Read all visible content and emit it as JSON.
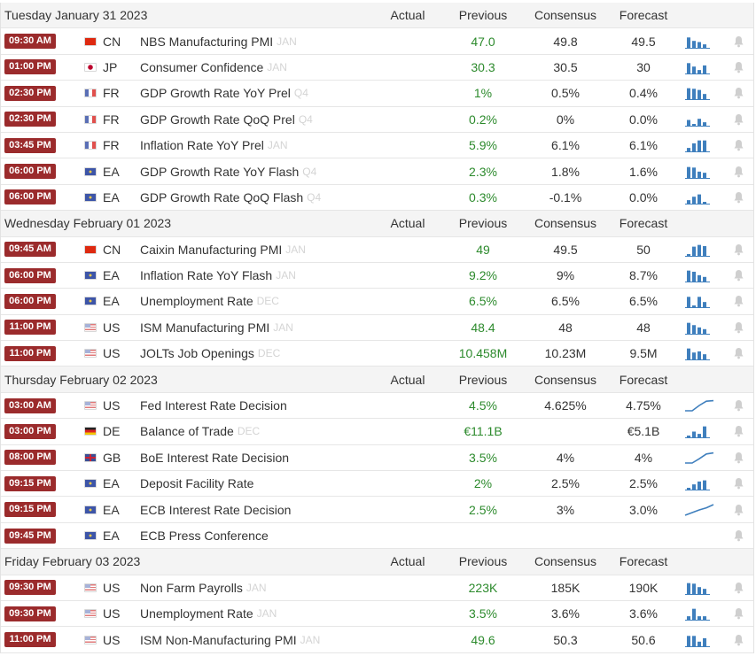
{
  "colors": {
    "time_badge": "#9b2b2c",
    "previous_value": "#2c8a2c",
    "sparkline": "#3f7fbd",
    "bell": "#cfcfcf"
  },
  "icons": {
    "bell": "bell-icon",
    "sparkline": "sparkline-chart-icon"
  },
  "columns": {
    "actual": "Actual",
    "previous": "Previous",
    "consensus": "Consensus",
    "forecast": "Forecast"
  },
  "days": [
    {
      "date": "Tuesday January 31 2023",
      "events": [
        {
          "time": "09:30 AM",
          "flag": "cn",
          "country": "CN",
          "event": "NBS Manufacturing PMI",
          "ref": "JAN",
          "actual": "",
          "previous": "47.0",
          "consensus": "49.8",
          "forecast": "49.5",
          "spark_type": "bar",
          "spark": [
            0.9,
            0.6,
            0.5,
            0.3
          ]
        },
        {
          "time": "01:00 PM",
          "flag": "jp",
          "country": "JP",
          "event": "Consumer Confidence",
          "ref": "JAN",
          "actual": "",
          "previous": "30.3",
          "consensus": "30.5",
          "forecast": "30",
          "spark_type": "bar",
          "spark": [
            0.9,
            0.6,
            0.3,
            0.7
          ]
        },
        {
          "time": "02:30 PM",
          "flag": "fr",
          "country": "FR",
          "event": "GDP Growth Rate YoY Prel",
          "ref": "Q4",
          "actual": "",
          "previous": "1%",
          "consensus": "0.5%",
          "forecast": "0.4%",
          "spark_type": "bar",
          "spark": [
            0.95,
            0.9,
            0.8,
            0.45
          ]
        },
        {
          "time": "02:30 PM",
          "flag": "fr",
          "country": "FR",
          "event": "GDP Growth Rate QoQ Prel",
          "ref": "Q4",
          "actual": "",
          "previous": "0.2%",
          "consensus": "0%",
          "forecast": "0.0%",
          "spark_type": "bar",
          "spark": [
            0.5,
            0.1,
            0.6,
            0.3
          ]
        },
        {
          "time": "03:45 PM",
          "flag": "fr",
          "country": "FR",
          "event": "Inflation Rate YoY Prel",
          "ref": "JAN",
          "actual": "",
          "previous": "5.9%",
          "consensus": "6.1%",
          "forecast": "6.1%",
          "spark_type": "bar",
          "spark": [
            0.3,
            0.7,
            0.95,
            0.95
          ]
        },
        {
          "time": "06:00 PM",
          "flag": "ea",
          "country": "EA",
          "event": "GDP Growth Rate YoY Flash",
          "ref": "Q4",
          "actual": "",
          "previous": "2.3%",
          "consensus": "1.8%",
          "forecast": "1.6%",
          "spark_type": "bar",
          "spark": [
            0.95,
            0.9,
            0.55,
            0.45
          ]
        },
        {
          "time": "06:00 PM",
          "flag": "ea",
          "country": "EA",
          "event": "GDP Growth Rate QoQ Flash",
          "ref": "Q4",
          "actual": "",
          "previous": "0.3%",
          "consensus": "-0.1%",
          "forecast": "0.0%",
          "spark_type": "bar",
          "spark": [
            0.3,
            0.6,
            0.8,
            0.1
          ]
        }
      ]
    },
    {
      "date": "Wednesday February 01 2023",
      "events": [
        {
          "time": "09:45 AM",
          "flag": "cn",
          "country": "CN",
          "event": "Caixin Manufacturing PMI",
          "ref": "JAN",
          "actual": "",
          "previous": "49",
          "consensus": "49.5",
          "forecast": "50",
          "spark_type": "bar",
          "spark": [
            0.1,
            0.8,
            0.95,
            0.85
          ]
        },
        {
          "time": "06:00 PM",
          "flag": "ea",
          "country": "EA",
          "event": "Inflation Rate YoY Flash",
          "ref": "JAN",
          "actual": "",
          "previous": "9.2%",
          "consensus": "9%",
          "forecast": "8.7%",
          "spark_type": "bar",
          "spark": [
            0.95,
            0.85,
            0.55,
            0.4
          ]
        },
        {
          "time": "06:00 PM",
          "flag": "ea",
          "country": "EA",
          "event": "Unemployment Rate",
          "ref": "DEC",
          "actual": "",
          "previous": "6.5%",
          "consensus": "6.5%",
          "forecast": "6.5%",
          "spark_type": "bar",
          "spark": [
            0.9,
            0.1,
            0.9,
            0.45
          ]
        },
        {
          "time": "11:00 PM",
          "flag": "us",
          "country": "US",
          "event": "ISM Manufacturing PMI",
          "ref": "JAN",
          "actual": "",
          "previous": "48.4",
          "consensus": "48",
          "forecast": "48",
          "spark_type": "bar",
          "spark": [
            0.95,
            0.75,
            0.55,
            0.4
          ]
        },
        {
          "time": "11:00 PM",
          "flag": "us",
          "country": "US",
          "event": "JOLTs Job Openings",
          "ref": "DEC",
          "actual": "",
          "previous": "10.458M",
          "consensus": "10.23M",
          "forecast": "9.5M",
          "spark_type": "bar",
          "spark": [
            0.95,
            0.6,
            0.7,
            0.45
          ]
        }
      ]
    },
    {
      "date": "Thursday February 02 2023",
      "events": [
        {
          "time": "03:00 AM",
          "flag": "us",
          "country": "US",
          "event": "Fed Interest Rate Decision",
          "ref": "",
          "actual": "",
          "previous": "4.5%",
          "consensus": "4.625%",
          "forecast": "4.75%",
          "spark_type": "line",
          "spark": [
            0.0,
            0.0,
            0.5,
            0.9,
            0.95
          ]
        },
        {
          "time": "03:00 PM",
          "flag": "de",
          "country": "DE",
          "event": "Balance of Trade",
          "ref": "DEC",
          "actual": "",
          "previous": "€11.1B",
          "consensus": "",
          "forecast": "€5.1B",
          "spark_type": "bar",
          "spark": [
            0.1,
            0.5,
            0.3,
            0.95
          ]
        },
        {
          "time": "08:00 PM",
          "flag": "gb",
          "country": "GB",
          "event": "BoE Interest Rate Decision",
          "ref": "",
          "actual": "",
          "previous": "3.5%",
          "consensus": "4%",
          "forecast": "4%",
          "spark_type": "line",
          "spark": [
            0.0,
            0.0,
            0.4,
            0.85,
            0.95
          ]
        },
        {
          "time": "09:15 PM",
          "flag": "ea",
          "country": "EA",
          "event": "Deposit Facility Rate",
          "ref": "",
          "actual": "",
          "previous": "2%",
          "consensus": "2.5%",
          "forecast": "2.5%",
          "spark_type": "bar",
          "spark": [
            0.1,
            0.45,
            0.7,
            0.8
          ]
        },
        {
          "time": "09:15 PM",
          "flag": "ea",
          "country": "EA",
          "event": "ECB Interest Rate Decision",
          "ref": "",
          "actual": "",
          "previous": "2.5%",
          "consensus": "3%",
          "forecast": "3.0%",
          "spark_type": "line",
          "spark": [
            0.0,
            0.25,
            0.5,
            0.7,
            1.0
          ]
        },
        {
          "time": "09:45 PM",
          "flag": "ea",
          "country": "EA",
          "event": "ECB Press Conference",
          "ref": "",
          "actual": "",
          "previous": "",
          "consensus": "",
          "forecast": "",
          "spark_type": "none",
          "spark": []
        }
      ]
    },
    {
      "date": "Friday February 03 2023",
      "events": [
        {
          "time": "09:30 PM",
          "flag": "us",
          "country": "US",
          "event": "Non Farm Payrolls",
          "ref": "JAN",
          "actual": "",
          "previous": "223K",
          "consensus": "185K",
          "forecast": "190K",
          "spark_type": "bar",
          "spark": [
            0.95,
            0.9,
            0.6,
            0.45
          ]
        },
        {
          "time": "09:30 PM",
          "flag": "us",
          "country": "US",
          "event": "Unemployment Rate",
          "ref": "JAN",
          "actual": "",
          "previous": "3.5%",
          "consensus": "3.6%",
          "forecast": "3.6%",
          "spark_type": "bar",
          "spark": [
            0.3,
            0.95,
            0.3,
            0.3
          ]
        },
        {
          "time": "11:00 PM",
          "flag": "us",
          "country": "US",
          "event": "ISM Non-Manufacturing PMI",
          "ref": "JAN",
          "actual": "",
          "previous": "49.6",
          "consensus": "50.3",
          "forecast": "50.6",
          "spark_type": "bar",
          "spark": [
            0.9,
            0.9,
            0.4,
            0.7
          ]
        }
      ]
    }
  ]
}
